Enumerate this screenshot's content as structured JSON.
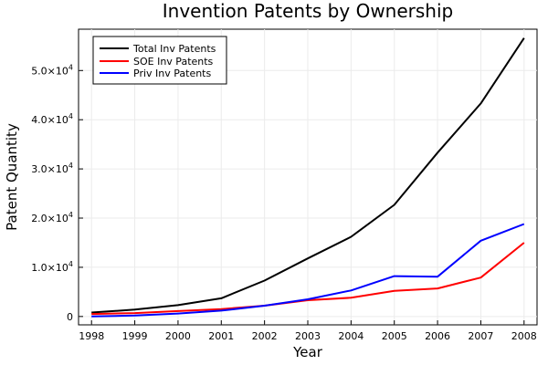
{
  "chart_data": {
    "type": "line",
    "title": "Invention Patents by Ownership",
    "xlabel": "Year",
    "ylabel": "Patent Quantity",
    "x": [
      1998,
      1999,
      2000,
      2001,
      2002,
      2003,
      2004,
      2005,
      2006,
      2007,
      2008
    ],
    "x_ticks": [
      "1998",
      "1999",
      "2000",
      "2001",
      "2002",
      "2003",
      "2004",
      "2005",
      "2006",
      "2007",
      "2008"
    ],
    "xlim": [
      1997.7,
      2008.3
    ],
    "ylim": [
      -1700,
      58400
    ],
    "y_ticks": [
      {
        "value": 0,
        "mantissa": "0",
        "exponent": ""
      },
      {
        "value": 10000,
        "mantissa": "1.0",
        "exponent": "4"
      },
      {
        "value": 20000,
        "mantissa": "2.0",
        "exponent": "4"
      },
      {
        "value": 30000,
        "mantissa": "3.0",
        "exponent": "4"
      },
      {
        "value": 40000,
        "mantissa": "4.0",
        "exponent": "4"
      },
      {
        "value": 50000,
        "mantissa": "5.0",
        "exponent": "4"
      }
    ],
    "grid": true,
    "legend_position": "top-left",
    "series": [
      {
        "name": "Total Inv Patents",
        "color": "#000000",
        "values": [
          800,
          1400,
          2300,
          3700,
          7300,
          11800,
          16200,
          22700,
          33300,
          43300,
          56600
        ]
      },
      {
        "name": "SOE Inv Patents",
        "color": "#ff0000",
        "values": [
          500,
          700,
          1100,
          1500,
          2200,
          3300,
          3800,
          5200,
          5700,
          7900,
          15000
        ]
      },
      {
        "name": "Priv Inv Patents",
        "color": "#0000ff",
        "values": [
          0,
          200,
          600,
          1200,
          2200,
          3500,
          5300,
          8200,
          8100,
          15400,
          18800
        ]
      }
    ]
  }
}
